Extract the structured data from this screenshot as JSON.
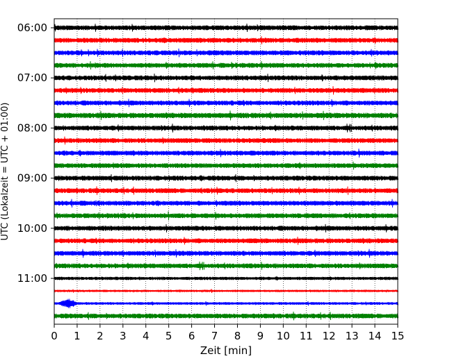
{
  "chart_data": {
    "type": "line",
    "title": "",
    "xlabel": "Zeit  [min]",
    "ylabel": "UTC (Lokalzeit = UTC + 01:00)",
    "xlim": [
      0,
      15
    ],
    "x_ticks": [
      "0",
      "1",
      "2",
      "3",
      "4",
      "5",
      "6",
      "7",
      "8",
      "9",
      "10",
      "11",
      "12",
      "13",
      "14",
      "15"
    ],
    "y_tick_labels": [
      {
        "label": "06:00",
        "row": 0
      },
      {
        "label": "07:00",
        "row": 4
      },
      {
        "label": "08:00",
        "row": 8
      },
      {
        "label": "09:00",
        "row": 12
      },
      {
        "label": "10:00",
        "row": 16
      },
      {
        "label": "11:00",
        "row": 20
      }
    ],
    "grid": "vertical dotted at each minute",
    "row_interval_min": 15,
    "start_time": "06:00",
    "color_cycle": [
      "#000000",
      "#ff0000",
      "#0000ff",
      "#008000"
    ],
    "series": [
      {
        "start": "06:00",
        "color": "#000000",
        "amplitude": 0.45
      },
      {
        "start": "06:15",
        "color": "#ff0000",
        "amplitude": 0.45
      },
      {
        "start": "06:30",
        "color": "#0000ff",
        "amplitude": 0.45
      },
      {
        "start": "06:45",
        "color": "#008000",
        "amplitude": 0.45
      },
      {
        "start": "07:00",
        "color": "#000000",
        "amplitude": 0.45
      },
      {
        "start": "07:15",
        "color": "#ff0000",
        "amplitude": 0.45
      },
      {
        "start": "07:30",
        "color": "#0000ff",
        "amplitude": 0.45
      },
      {
        "start": "07:45",
        "color": "#008000",
        "amplitude": 0.5
      },
      {
        "start": "08:00",
        "color": "#000000",
        "amplitude": 0.45
      },
      {
        "start": "08:15",
        "color": "#ff0000",
        "amplitude": 0.45
      },
      {
        "start": "08:30",
        "color": "#0000ff",
        "amplitude": 0.45
      },
      {
        "start": "08:45",
        "color": "#008000",
        "amplitude": 0.45
      },
      {
        "start": "09:00",
        "color": "#000000",
        "amplitude": 0.45
      },
      {
        "start": "09:15",
        "color": "#ff0000",
        "amplitude": 0.45
      },
      {
        "start": "09:30",
        "color": "#0000ff",
        "amplitude": 0.45
      },
      {
        "start": "09:45",
        "color": "#008000",
        "amplitude": 0.45
      },
      {
        "start": "10:00",
        "color": "#000000",
        "amplitude": 0.45
      },
      {
        "start": "10:15",
        "color": "#ff0000",
        "amplitude": 0.45
      },
      {
        "start": "10:30",
        "color": "#0000ff",
        "amplitude": 0.45
      },
      {
        "start": "10:45",
        "color": "#008000",
        "amplitude": 0.45
      },
      {
        "start": "11:00",
        "color": "#000000",
        "amplitude": 0.3,
        "end_min": 15
      },
      {
        "start": "11:15",
        "color": "#ff0000",
        "amplitude": 0.2
      },
      {
        "start": "11:30",
        "color": "#0000ff",
        "amplitude": 0.25,
        "event_min": 0.6
      },
      {
        "start": "11:45",
        "color": "#008000",
        "amplitude": 0.45
      }
    ]
  }
}
